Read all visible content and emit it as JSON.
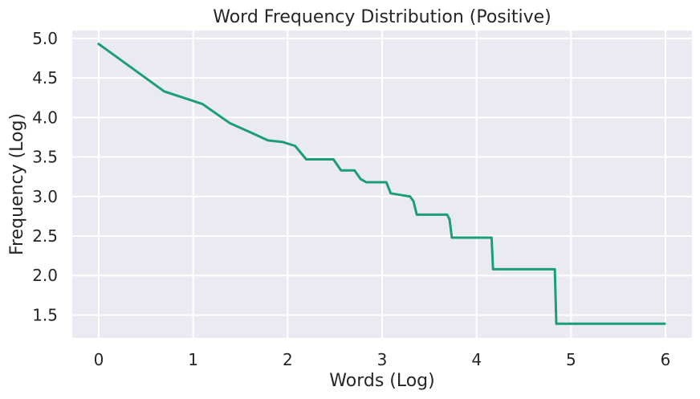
{
  "chart_data": {
    "type": "line",
    "title": "Word Frequency Distribution (Positive)",
    "xlabel": "Words (Log)",
    "ylabel": "Frequency (Log)",
    "xlim": [
      -0.28,
      6.28
    ],
    "ylim": [
      1.21,
      5.1
    ],
    "xticks": [
      0,
      1,
      2,
      3,
      4,
      5,
      6
    ],
    "yticks": [
      1.5,
      2.0,
      2.5,
      3.0,
      3.5,
      4.0,
      4.5,
      5.0
    ],
    "xtick_labels": [
      "0",
      "1",
      "2",
      "3",
      "4",
      "5",
      "6"
    ],
    "ytick_labels": [
      "1.5",
      "2.0",
      "2.5",
      "3.0",
      "3.5",
      "4.0",
      "4.5",
      "5.0"
    ],
    "grid": true,
    "background_color": "#eaeaf2",
    "grid_color": "#ffffff",
    "series": [
      {
        "color": "#1b9e77",
        "x": [
          0.0,
          0.693,
          1.099,
          1.386,
          1.609,
          1.792,
          1.946,
          2.079,
          2.197,
          2.303,
          2.398,
          2.485,
          2.565,
          2.708,
          2.773,
          2.833,
          2.944,
          3.045,
          3.091,
          3.296,
          3.332,
          3.367,
          3.689,
          3.714,
          3.738,
          4.159,
          4.174,
          4.828,
          4.844,
          5.992
        ],
        "y": [
          4.93,
          4.33,
          4.17,
          3.93,
          3.81,
          3.71,
          3.69,
          3.64,
          3.47,
          3.47,
          3.47,
          3.47,
          3.33,
          3.33,
          3.22,
          3.18,
          3.18,
          3.18,
          3.04,
          3.0,
          2.94,
          2.77,
          2.77,
          2.71,
          2.48,
          2.48,
          2.08,
          2.08,
          1.39,
          1.39
        ]
      }
    ]
  }
}
